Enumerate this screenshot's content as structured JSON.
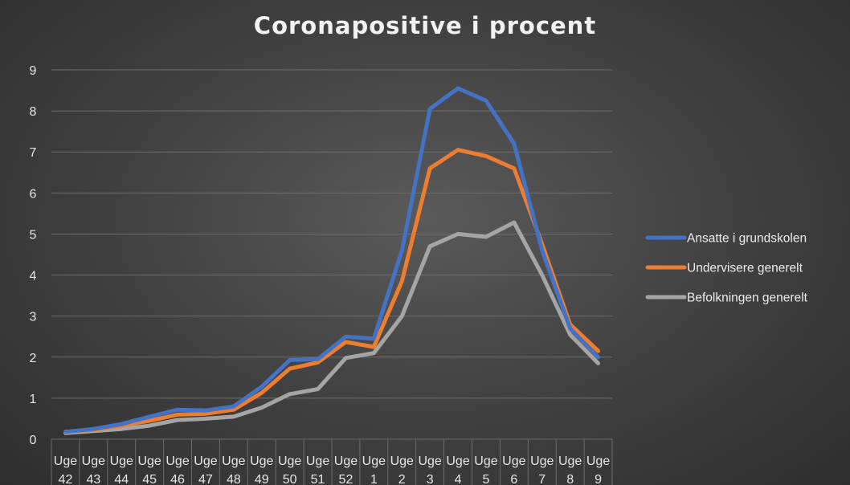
{
  "chart_data": {
    "type": "line",
    "title": "Coronapositive i procent",
    "xlabel": "",
    "ylabel": "",
    "ylim": [
      0,
      9
    ],
    "yticks": [
      "0",
      "1",
      "2",
      "3",
      "4",
      "5",
      "6",
      "7",
      "8",
      "9"
    ],
    "categories": [
      [
        "Uge",
        "42"
      ],
      [
        "Uge",
        "43"
      ],
      [
        "Uge",
        "44"
      ],
      [
        "Uge",
        "45"
      ],
      [
        "Uge",
        "46"
      ],
      [
        "Uge",
        "47"
      ],
      [
        "Uge",
        "48"
      ],
      [
        "Uge",
        "49"
      ],
      [
        "Uge",
        "50"
      ],
      [
        "Uge",
        "51"
      ],
      [
        "Uge",
        "52"
      ],
      [
        "Uge",
        "1"
      ],
      [
        "Uge",
        "2"
      ],
      [
        "Uge",
        "3"
      ],
      [
        "Uge",
        "4"
      ],
      [
        "Uge",
        "5"
      ],
      [
        "Uge",
        "6"
      ],
      [
        "Uge",
        "7"
      ],
      [
        "Uge",
        "8"
      ],
      [
        "Uge",
        "9"
      ]
    ],
    "series": [
      {
        "name": "Ansatte i grundskolen",
        "color": "#4472c4",
        "values": [
          0.18,
          0.25,
          0.37,
          0.55,
          0.72,
          0.7,
          0.8,
          1.28,
          1.93,
          1.95,
          2.5,
          2.45,
          4.6,
          8.05,
          8.55,
          8.25,
          7.2,
          4.6,
          2.7,
          2.0
        ]
      },
      {
        "name": "Undervisere generelt",
        "color": "#ed7d31",
        "values": [
          0.18,
          0.23,
          0.33,
          0.45,
          0.6,
          0.62,
          0.72,
          1.13,
          1.72,
          1.87,
          2.37,
          2.25,
          3.85,
          6.6,
          7.05,
          6.9,
          6.6,
          4.75,
          2.8,
          2.15
        ]
      },
      {
        "name": "Befolkningen generelt",
        "color": "#a5a5a5",
        "values": [
          0.15,
          0.2,
          0.25,
          0.33,
          0.47,
          0.5,
          0.55,
          0.77,
          1.1,
          1.22,
          1.98,
          2.1,
          3.0,
          4.7,
          5.0,
          4.93,
          5.28,
          4.0,
          2.55,
          1.85
        ]
      }
    ],
    "legend_position": "right",
    "grid": true
  }
}
